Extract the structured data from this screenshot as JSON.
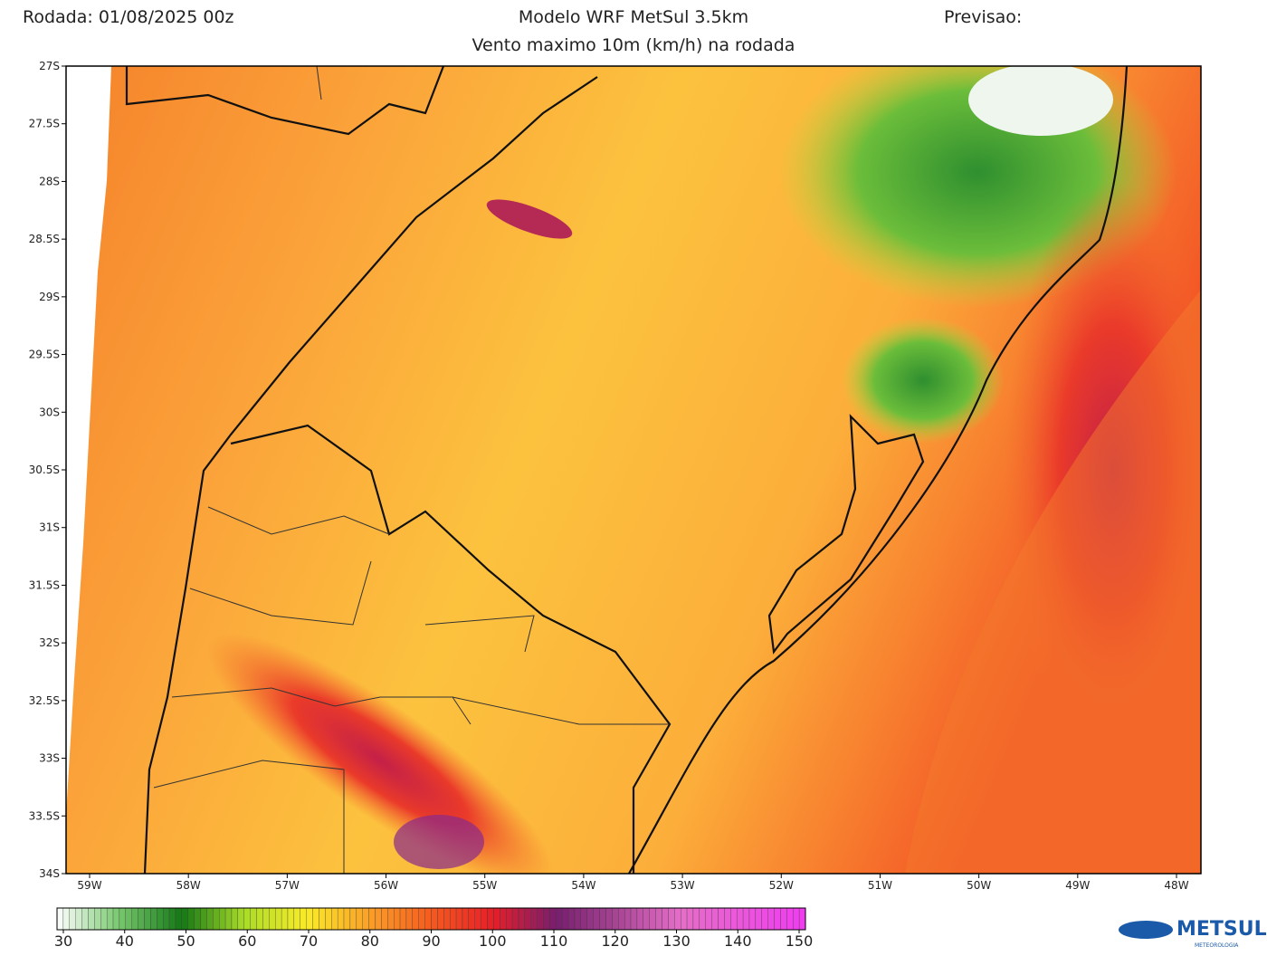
{
  "header": {
    "left": "Rodada: 01/08/2025 00z",
    "center": "Modelo WRF MetSul 3.5km",
    "right": "Previsao:",
    "subtitle": "Vento maximo 10m (km/h) na rodada"
  },
  "map": {
    "lat_labels": [
      "27S",
      "27.5S",
      "28S",
      "28.5S",
      "29S",
      "29.5S",
      "30S",
      "30.5S",
      "31S",
      "31.5S",
      "32S",
      "32.5S",
      "33S",
      "33.5S",
      "34S"
    ],
    "lon_labels": [
      "59W",
      "58W",
      "57W",
      "56W",
      "55W",
      "54W",
      "53W",
      "52W",
      "51W",
      "50W",
      "49W",
      "48W"
    ]
  },
  "colorbar": {
    "ticks": [
      30,
      40,
      50,
      60,
      70,
      80,
      90,
      100,
      110,
      120,
      130,
      140,
      150
    ]
  },
  "logo": {
    "text": "METSUL",
    "sub": "METEOROLOGIA"
  }
}
